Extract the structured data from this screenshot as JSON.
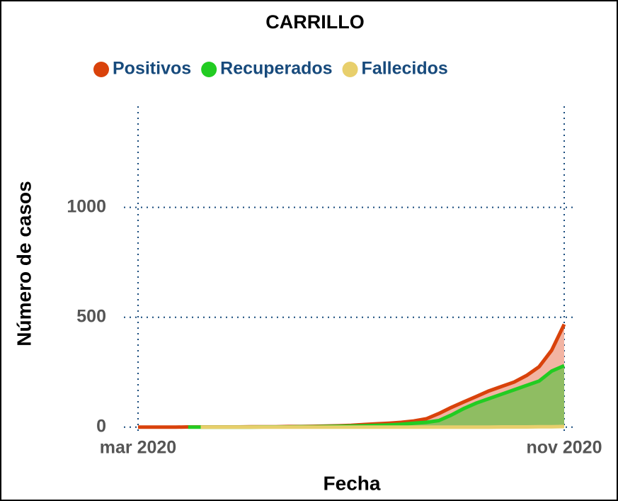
{
  "chart_data": {
    "type": "area",
    "title": "CARRILLO",
    "x_label": "Fecha",
    "y_label": "Número de casos",
    "categories": [
      "mar 2020",
      null,
      null,
      null,
      null,
      null,
      null,
      null,
      null,
      null,
      null,
      null,
      null,
      null,
      null,
      null,
      null,
      null,
      null,
      null,
      null,
      null,
      null,
      null,
      null,
      null,
      null,
      null,
      null,
      null,
      null,
      null,
      null,
      null,
      "nov 2020"
    ],
    "series": [
      {
        "name": "Positivos",
        "color": "#d9420b",
        "fill": "#f2b4a3",
        "values": [
          0,
          0,
          0,
          0,
          1,
          1,
          1,
          1,
          1,
          2,
          2,
          2,
          3,
          3,
          4,
          5,
          6,
          8,
          12,
          15,
          18,
          22,
          28,
          38,
          62,
          90,
          115,
          140,
          165,
          185,
          205,
          235,
          275,
          350,
          468
        ]
      },
      {
        "name": "Recuperados",
        "color": "#22cc22",
        "fill": "#8fbd62",
        "values": [
          null,
          null,
          null,
          null,
          0,
          0,
          0,
          0,
          0,
          0,
          1,
          1,
          1,
          2,
          2,
          3,
          4,
          5,
          6,
          8,
          10,
          13,
          18,
          22,
          30,
          55,
          85,
          110,
          130,
          150,
          170,
          190,
          210,
          255,
          280
        ]
      },
      {
        "name": "Fallecidos",
        "color": "#e8cf6c",
        "values": [
          null,
          null,
          null,
          null,
          null,
          0,
          0,
          0,
          0,
          0,
          0,
          0,
          0,
          0,
          0,
          0,
          0,
          0,
          0,
          0,
          0,
          0,
          0,
          0,
          0,
          0,
          0,
          0,
          0,
          1,
          1,
          1,
          2,
          2,
          3
        ]
      }
    ],
    "ylim": [
      -20,
      1460
    ],
    "yticks": [
      0,
      500,
      1000
    ],
    "grid": true,
    "legend": "top"
  }
}
